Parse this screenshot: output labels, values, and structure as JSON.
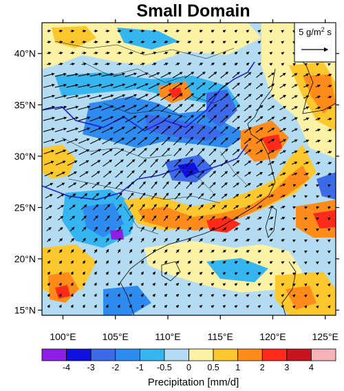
{
  "map": {
    "title": "Small Domain",
    "lon_ticks": [
      "100°E",
      "105°E",
      "110°E",
      "115°E",
      "120°E",
      "125°E"
    ],
    "lat_ticks": [
      "40°N",
      "35°N",
      "30°N",
      "25°N",
      "20°N",
      "15°N"
    ],
    "lon_range": [
      98,
      126
    ],
    "lat_range": [
      14.5,
      43
    ],
    "reference_vector": {
      "label": "5 g/m",
      "superscript": "2",
      "suffix": " s",
      "magnitude": 5
    },
    "colorbar": {
      "label": "Precipitation [mm/d]",
      "ticks": [
        "-4",
        "-3",
        "-2",
        "-1",
        "-0.5",
        "0",
        "0.5",
        "1",
        "2",
        "3",
        "4"
      ],
      "colors": [
        "#8f1fe6",
        "#1010e0",
        "#3d6ae8",
        "#2e8cf0",
        "#35b6f0",
        "#b3dcf2",
        "#fbf2a6",
        "#fdc82d",
        "#ff8c1a",
        "#ff2a1a",
        "#c8141e",
        "#f7b2b8"
      ]
    }
  }
}
